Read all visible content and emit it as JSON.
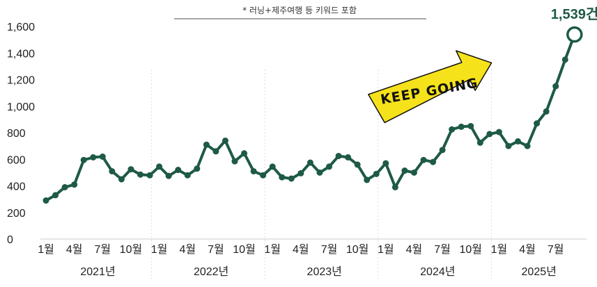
{
  "chart_data": {
    "type": "line",
    "subtitle": "* 러닝+제주여행 등 키워드 포함",
    "ylim": [
      0,
      1600
    ],
    "yticks": [
      "0",
      "200",
      "400",
      "600",
      "800",
      "1,000",
      "1,200",
      "1,400",
      "1,600"
    ],
    "month_ticks": [
      "1월",
      "4월",
      "7월",
      "10월",
      "1월",
      "4월",
      "7월",
      "10월",
      "1월",
      "4월",
      "7월",
      "10월",
      "1월",
      "4월",
      "7월",
      "10월",
      "1월",
      "4월",
      "7월"
    ],
    "years": [
      "2021년",
      "2022년",
      "2023년",
      "2024년",
      "2025년"
    ],
    "peak_label": "1,539건",
    "sticker_text": "KEEP GOING",
    "grid": "vertical dotted separators at each year start",
    "colors": {
      "line": "#1e5a45",
      "sticker": "#f6e21a",
      "divider": "#dddddd"
    },
    "series": [
      {
        "values": [
          290,
          330,
          390,
          410,
          595,
          615,
          620,
          510,
          450,
          525,
          485,
          480,
          545,
          475,
          520,
          480,
          530,
          710,
          660,
          740,
          585,
          645,
          510,
          480,
          545,
          465,
          455,
          495,
          575,
          500,
          545,
          625,
          615,
          560,
          445,
          490,
          570,
          390,
          515,
          500,
          595,
          580,
          670,
          825,
          845,
          850,
          725,
          790,
          805,
          700,
          735,
          700,
          870,
          960,
          1150,
          1350,
          1539
        ]
      }
    ]
  }
}
